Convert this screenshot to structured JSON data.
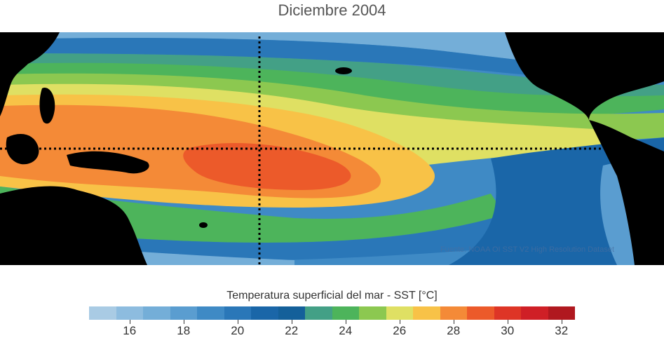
{
  "title": "Diciembre 2004",
  "credit": "Fuente: NOAA OI SST V2 High Resolution Dataset",
  "legend": {
    "title": "Temperatura superficial del mar - SST  [°C]",
    "colors": [
      "#a9cbe4",
      "#8dbcdf",
      "#74aed8",
      "#5a9dd0",
      "#3f8ac5",
      "#2a77b8",
      "#1a66a8",
      "#14609a",
      "#43a086",
      "#4db45b",
      "#8cc850",
      "#dfe063",
      "#f8c247",
      "#f48a37",
      "#ec5a2a",
      "#de3526",
      "#cf1f26",
      "#b0181f"
    ],
    "tick_values": [
      16,
      18,
      20,
      22,
      24,
      26,
      28,
      30,
      32
    ],
    "tick_labels": [
      "16",
      "18",
      "20",
      "22",
      "24",
      "26",
      "28",
      "30",
      "32"
    ],
    "range": [
      15,
      33
    ]
  }
}
